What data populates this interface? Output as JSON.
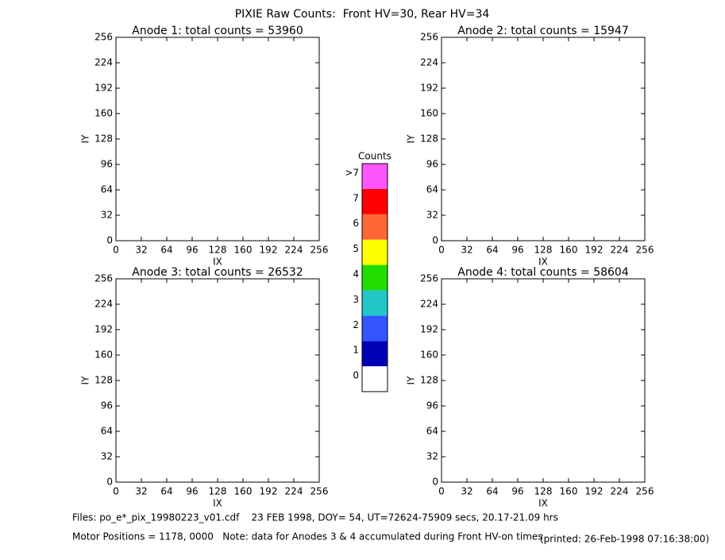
{
  "title": "PIXIE Raw Counts:  Front HV=30, Rear HV=34",
  "chart_data": [
    {
      "type": "heatmap",
      "title": "Anode 1: total counts = 53960",
      "xlabel": "IX",
      "ylabel": "IY",
      "xlim": [
        0,
        256
      ],
      "ylim": [
        0,
        256
      ],
      "xticks": [
        0,
        32,
        64,
        96,
        128,
        160,
        192,
        224,
        256
      ],
      "yticks": [
        0,
        32,
        64,
        96,
        128,
        160,
        192,
        224,
        256
      ]
    },
    {
      "type": "heatmap",
      "title": "Anode 2: total counts = 15947",
      "xlabel": "IX",
      "ylabel": "IY",
      "xlim": [
        0,
        256
      ],
      "ylim": [
        0,
        256
      ],
      "xticks": [
        0,
        32,
        64,
        96,
        128,
        160,
        192,
        224,
        256
      ],
      "yticks": [
        0,
        32,
        64,
        96,
        128,
        160,
        192,
        224,
        256
      ]
    },
    {
      "type": "heatmap",
      "title": "Anode 3: total counts = 26532",
      "xlabel": "IX",
      "ylabel": "IY",
      "xlim": [
        0,
        256
      ],
      "ylim": [
        0,
        256
      ],
      "xticks": [
        0,
        32,
        64,
        96,
        128,
        160,
        192,
        224,
        256
      ],
      "yticks": [
        0,
        32,
        64,
        96,
        128,
        160,
        192,
        224,
        256
      ]
    },
    {
      "type": "heatmap",
      "title": "Anode 4: total counts = 58604",
      "xlabel": "IX",
      "ylabel": "IY",
      "xlim": [
        0,
        256
      ],
      "ylim": [
        0,
        256
      ],
      "xticks": [
        0,
        32,
        64,
        96,
        128,
        160,
        192,
        224,
        256
      ],
      "yticks": [
        0,
        32,
        64,
        96,
        128,
        160,
        192,
        224,
        256
      ]
    }
  ],
  "colorbar": {
    "title": "Counts",
    "ticks": [
      0,
      1,
      2,
      3,
      4,
      5,
      6,
      7,
      {
        "value": 8,
        "label": ">7"
      }
    ],
    "colors": [
      "#ffffff",
      "#0000b4",
      "#3355ff",
      "#22c8c8",
      "#22dd00",
      "#ffff00",
      "#ff6633",
      "#ff0000",
      "#ff55ff"
    ]
  },
  "footer": {
    "files": "Files: po_e*_pix_19980223_v01.cdf    23 FEB 1998, DOY= 54, UT=72624-75909 secs, 20.17-21.09 hrs",
    "motor": "Motor Positions = 1178, 0000   Note: data for Anodes 3 & 4 accumulated during Front HV-on times",
    "printed": "(printed: 26-Feb-1998 07:16:38:00)"
  }
}
